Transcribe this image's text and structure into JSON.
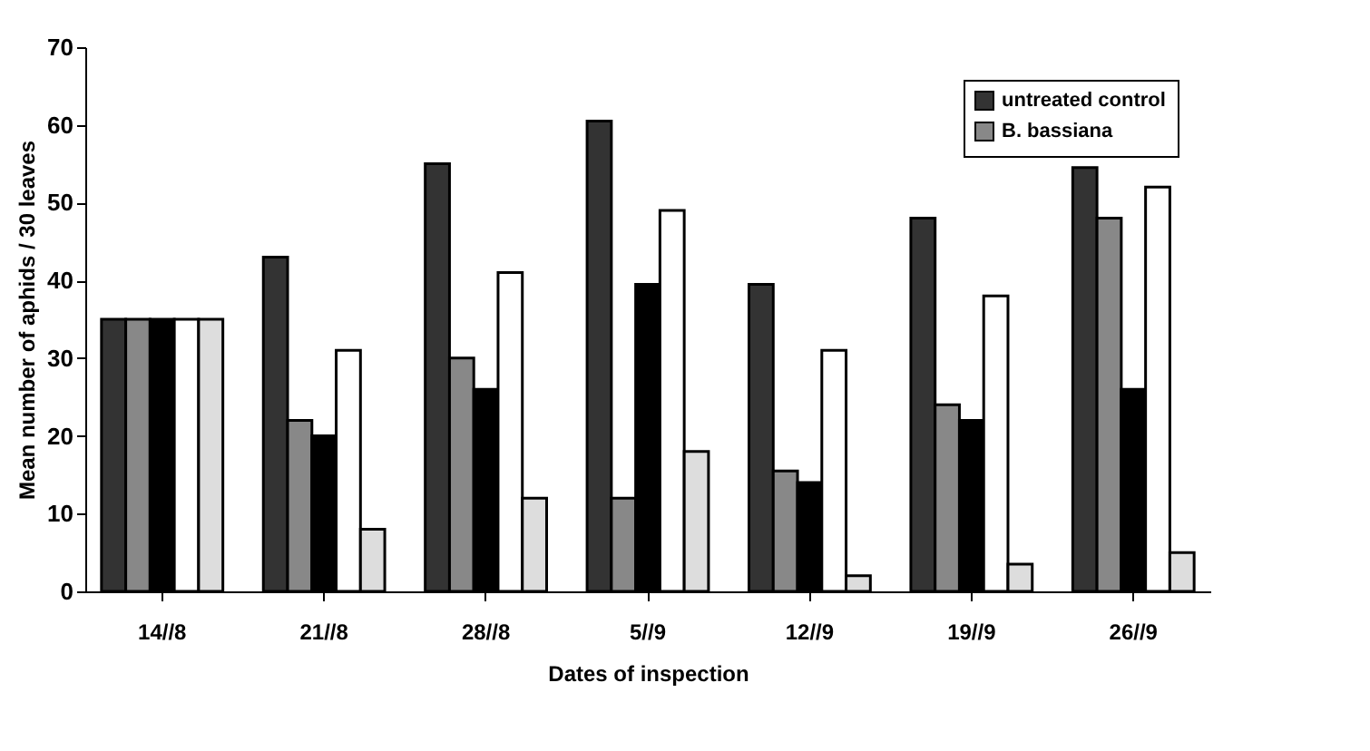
{
  "chart_data": {
    "type": "bar",
    "xlabel": "Dates of inspection",
    "ylabel": "Mean number of aphids / 30 leaves",
    "categories": [
      "14//8",
      "21//8",
      "28//8",
      "5//9",
      "12//9",
      "19//9",
      "26//9"
    ],
    "series": [
      {
        "name": "untreated control",
        "color": "#333333",
        "values": [
          35,
          43,
          55,
          60.5,
          39.5,
          48,
          54.5
        ]
      },
      {
        "name": "B. bassiana",
        "color": "#888888",
        "values": [
          35,
          22,
          30,
          12,
          15.5,
          24,
          48
        ]
      },
      {
        "color": "#000000",
        "values": [
          35,
          20,
          26,
          39.5,
          14,
          22,
          26
        ]
      },
      {
        "color": "#ffffff",
        "values": [
          35,
          31,
          41,
          49,
          31,
          38,
          52
        ]
      },
      {
        "color": "#dddddd",
        "values": [
          35,
          8,
          12,
          18,
          2,
          3.5,
          5
        ]
      }
    ],
    "ylim": [
      0,
      70
    ],
    "yticks": [
      0,
      10,
      20,
      30,
      40,
      50,
      60,
      70
    ],
    "grid": false,
    "legend": "top right"
  }
}
